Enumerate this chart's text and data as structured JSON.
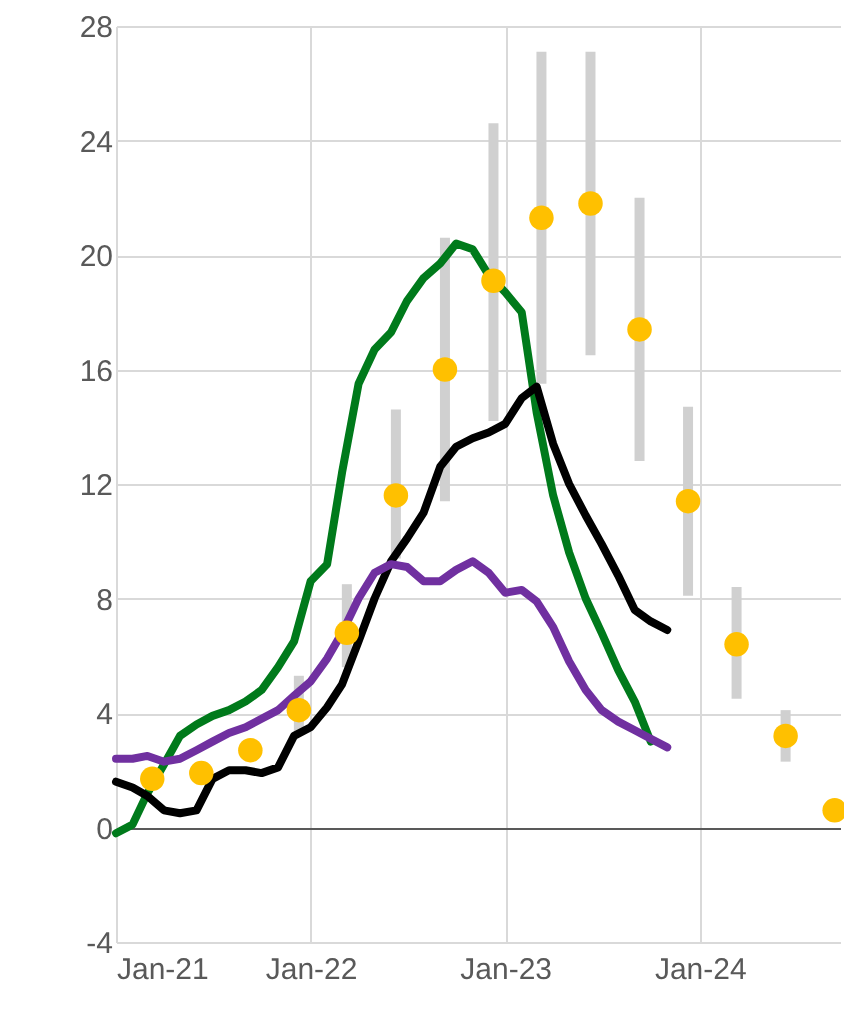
{
  "chart_data": {
    "type": "line",
    "xlim": [
      "2021-01",
      "2024-09-20"
    ],
    "ylim": [
      -4,
      28
    ],
    "xticks": [
      {
        "value": "2021-01",
        "label": "Jan-21"
      },
      {
        "value": "2022-01",
        "label": "Jan-22"
      },
      {
        "value": "2023-01",
        "label": "Jan-23"
      },
      {
        "value": "2024-01",
        "label": "Jan-24"
      }
    ],
    "yticks": [
      -4,
      0,
      4,
      8,
      12,
      16,
      20,
      24,
      28
    ],
    "grid": true,
    "legend": false,
    "line_style": "solid",
    "marker": "none",
    "x": [
      "2021-01",
      "2021-02",
      "2021-03",
      "2021-04",
      "2021-05",
      "2021-06",
      "2021-07",
      "2021-08",
      "2021-09",
      "2021-10",
      "2021-11",
      "2021-12",
      "2022-01",
      "2022-02",
      "2022-03",
      "2022-04",
      "2022-05",
      "2022-06",
      "2022-07",
      "2022-08",
      "2022-09",
      "2022-10",
      "2022-11",
      "2022-12",
      "2023-01",
      "2023-02",
      "2023-03",
      "2023-04",
      "2023-05",
      "2023-06",
      "2023-07",
      "2023-08",
      "2023-09",
      "2023-10",
      "2023-11"
    ],
    "series": [
      {
        "color": "#007a1b",
        "values": [
          -0.2,
          0.1,
          1.2,
          2.2,
          3.2,
          3.6,
          3.9,
          4.1,
          4.4,
          4.8,
          5.6,
          6.5,
          8.6,
          9.2,
          12.4,
          15.5,
          16.7,
          17.3,
          18.4,
          19.2,
          19.7,
          20.4,
          20.2,
          19.3,
          18.7,
          18.0,
          14.5,
          11.6,
          9.6,
          8.0,
          6.8,
          5.5,
          4.4,
          3.0,
          null
        ]
      },
      {
        "color": "#000000",
        "values": [
          1.6,
          1.4,
          1.1,
          0.6,
          0.5,
          0.6,
          1.7,
          2.0,
          2.0,
          1.9,
          2.1,
          3.2,
          3.5,
          4.2,
          5.0,
          6.5,
          8.0,
          9.3,
          10.1,
          11.0,
          12.6,
          13.3,
          13.6,
          13.8,
          14.1,
          15.0,
          15.4,
          13.4,
          12.0,
          10.9,
          9.9,
          8.8,
          7.6,
          7.2,
          6.9
        ]
      },
      {
        "color": "#7030a0",
        "values": [
          2.4,
          2.4,
          2.5,
          2.3,
          2.4,
          2.7,
          3.0,
          3.3,
          3.5,
          3.8,
          4.1,
          4.6,
          5.1,
          5.9,
          6.8,
          8.0,
          8.9,
          9.2,
          9.1,
          8.6,
          8.6,
          9.0,
          9.3,
          8.9,
          8.2,
          8.3,
          7.9,
          7.0,
          5.8,
          4.8,
          4.1,
          3.7,
          3.4,
          3.1,
          2.8
        ]
      },
      {
        "type": "scatter",
        "marker": "circle",
        "color": "#ffc000",
        "x": [
          "2021-03-10",
          "2021-06-10",
          "2021-09-10",
          "2021-12-10",
          "2022-03-10",
          "2022-06-10",
          "2022-09-10",
          "2022-12-10",
          "2023-03-10",
          "2023-06-10",
          "2023-09-10",
          "2023-12-10",
          "2024-03-10",
          "2024-06-10",
          "2024-09-10"
        ],
        "values": [
          1.7,
          1.9,
          2.7,
          4.1,
          6.8,
          11.6,
          16.0,
          19.1,
          21.3,
          21.8,
          17.4,
          11.4,
          6.4,
          3.2,
          0.6
        ],
        "errors": [
          null,
          null,
          null,
          [
            3.3,
            5.3
          ],
          [
            5.6,
            8.5
          ],
          [
            9.4,
            14.6
          ],
          [
            11.4,
            20.6
          ],
          [
            14.2,
            24.6
          ],
          [
            15.5,
            27.1
          ],
          [
            16.5,
            27.1
          ],
          [
            12.8,
            22.0
          ],
          [
            8.1,
            14.7
          ],
          [
            4.5,
            8.4
          ],
          [
            2.3,
            4.1
          ],
          null
        ]
      }
    ]
  }
}
